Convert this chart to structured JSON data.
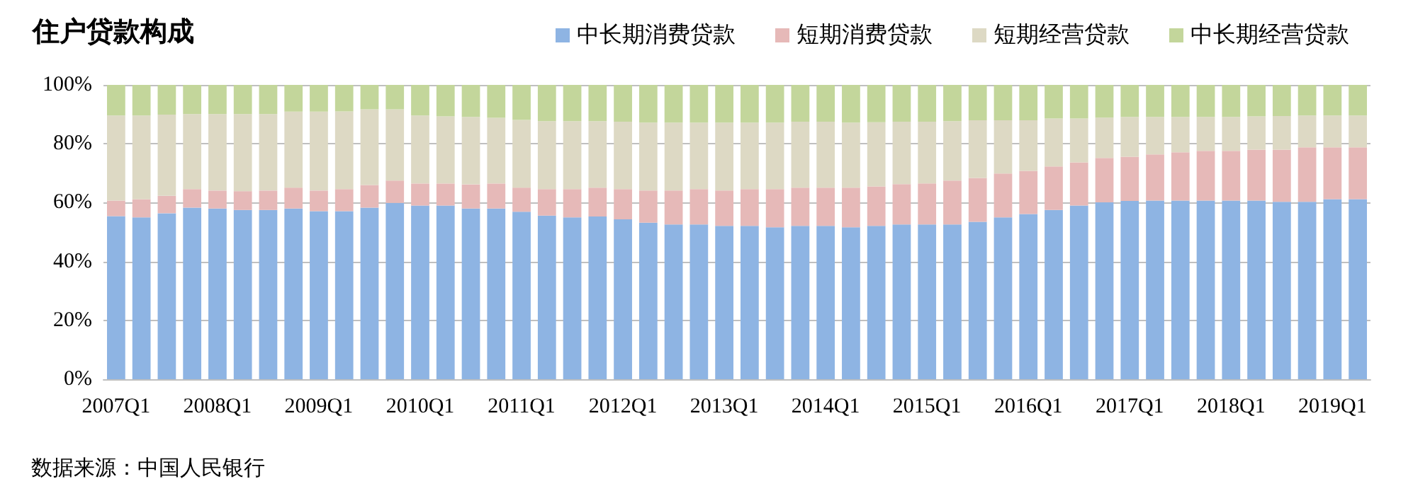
{
  "chart_data": {
    "type": "bar",
    "title": "住户贷款构成",
    "stacked": true,
    "legend": "top right",
    "grid": "y",
    "categories": [
      "2007Q1",
      null,
      null,
      null,
      "2008Q1",
      null,
      null,
      null,
      "2009Q1",
      null,
      null,
      null,
      "2010Q1",
      null,
      null,
      null,
      "2011Q1",
      null,
      null,
      null,
      "2012Q1",
      null,
      null,
      null,
      "2013Q1",
      null,
      null,
      null,
      "2014Q1",
      null,
      null,
      null,
      "2015Q1",
      null,
      null,
      null,
      "2016Q1",
      null,
      null,
      null,
      "2017Q1",
      null,
      null,
      null,
      "2018Q1",
      null,
      null,
      null,
      "2019Q1",
      null
    ],
    "ylim": [
      0,
      100
    ],
    "yticks": [
      {
        "value": 0,
        "label": "0%"
      },
      {
        "value": 20,
        "label": "20%"
      },
      {
        "value": 40,
        "label": "40%"
      },
      {
        "value": 60,
        "label": "60%"
      },
      {
        "value": 80,
        "label": "80%"
      },
      {
        "value": 100,
        "label": "100%"
      }
    ],
    "series": [
      {
        "name": "中长期消费贷款",
        "color": "#8eb4e3",
        "values": [
          55.4,
          55.0,
          56.4,
          58.3,
          58.0,
          57.5,
          57.5,
          58.0,
          57.1,
          57.1,
          58.3,
          59.9,
          59.0,
          59.0,
          58.0,
          58.0,
          56.9,
          55.6,
          55.0,
          55.3,
          54.3,
          53.2,
          52.6,
          52.6,
          52.1,
          52.1,
          51.6,
          52.1,
          52.1,
          51.6,
          52.1,
          52.6,
          52.6,
          52.6,
          53.5,
          55.0,
          56.1,
          57.5,
          59.0,
          60.1,
          60.6,
          60.7,
          60.7,
          60.7,
          60.7,
          60.7,
          60.3,
          60.3,
          61.2,
          61.2
        ]
      },
      {
        "name": "短期消费贷款",
        "color": "#e6b9b8",
        "values": [
          5.3,
          6.2,
          5.9,
          6.3,
          6.1,
          6.4,
          6.6,
          7.1,
          7.0,
          7.5,
          7.7,
          7.6,
          7.5,
          7.5,
          8.2,
          8.5,
          8.2,
          9.0,
          9.6,
          9.8,
          10.3,
          10.9,
          11.5,
          12.0,
          12.0,
          12.5,
          13.0,
          13.0,
          13.0,
          13.5,
          13.4,
          13.7,
          13.9,
          14.9,
          14.9,
          14.9,
          14.7,
          14.8,
          14.7,
          15.1,
          15.0,
          15.7,
          16.4,
          16.9,
          16.9,
          17.3,
          17.7,
          18.5,
          17.6,
          17.6
        ]
      },
      {
        "name": "短期经营贷款",
        "color": "#ddd9c4",
        "values": [
          28.9,
          28.4,
          27.6,
          25.5,
          26.0,
          26.2,
          26.0,
          25.8,
          26.8,
          26.4,
          25.7,
          24.2,
          23.1,
          22.8,
          22.9,
          22.3,
          23.0,
          23.1,
          23.1,
          22.6,
          22.9,
          23.1,
          23.1,
          22.6,
          23.1,
          22.6,
          22.6,
          22.4,
          22.4,
          22.1,
          21.8,
          21.2,
          21.0,
          20.2,
          19.6,
          18.1,
          17.2,
          16.3,
          14.9,
          13.7,
          13.5,
          12.7,
          12.0,
          11.5,
          11.5,
          11.3,
          11.4,
          10.8,
          10.8,
          10.8
        ]
      },
      {
        "name": "中长期经营贷款",
        "color": "#c3d69b",
        "values": [
          10.4,
          10.4,
          10.1,
          9.9,
          9.9,
          9.9,
          9.9,
          9.1,
          9.1,
          9.0,
          8.3,
          8.3,
          10.4,
          10.7,
          10.9,
          11.2,
          11.9,
          12.3,
          12.3,
          12.3,
          12.5,
          12.8,
          12.8,
          12.8,
          12.8,
          12.8,
          12.8,
          12.5,
          12.5,
          12.8,
          12.7,
          12.5,
          12.5,
          12.3,
          12.0,
          12.0,
          12.0,
          11.4,
          11.4,
          11.1,
          10.9,
          10.9,
          10.9,
          10.9,
          10.9,
          10.7,
          10.6,
          10.4,
          10.4,
          10.4
        ]
      }
    ],
    "annotations": [
      "数据来源：中国人民银行"
    ]
  }
}
